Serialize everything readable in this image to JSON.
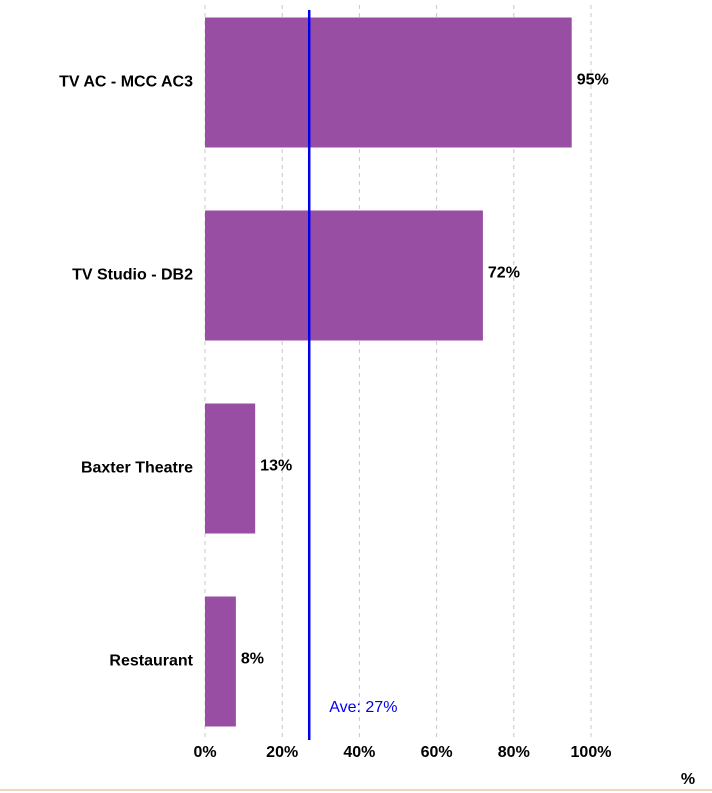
{
  "chart_data": {
    "type": "bar",
    "orientation": "horizontal",
    "categories": [
      "TV AC - MCC AC3",
      "TV Studio - DB2",
      "Baxter Theatre",
      "Restaurant"
    ],
    "values": [
      95,
      72,
      13,
      8
    ],
    "value_labels": [
      "95%",
      "72%",
      "13%",
      "8%"
    ],
    "color": "#984ea3",
    "xlim": [
      0,
      100
    ],
    "xticks": [
      {
        "value": 0,
        "label": "0%"
      },
      {
        "value": 20,
        "label": "20%"
      },
      {
        "value": 40,
        "label": "40%"
      },
      {
        "value": 60,
        "label": "60%"
      },
      {
        "value": 80,
        "label": "80%"
      },
      {
        "value": 100,
        "label": "100%"
      }
    ],
    "x_label": "%",
    "grid": true,
    "average": {
      "value": 27,
      "label": "Ave: 27%",
      "color": "#0000ee"
    }
  }
}
